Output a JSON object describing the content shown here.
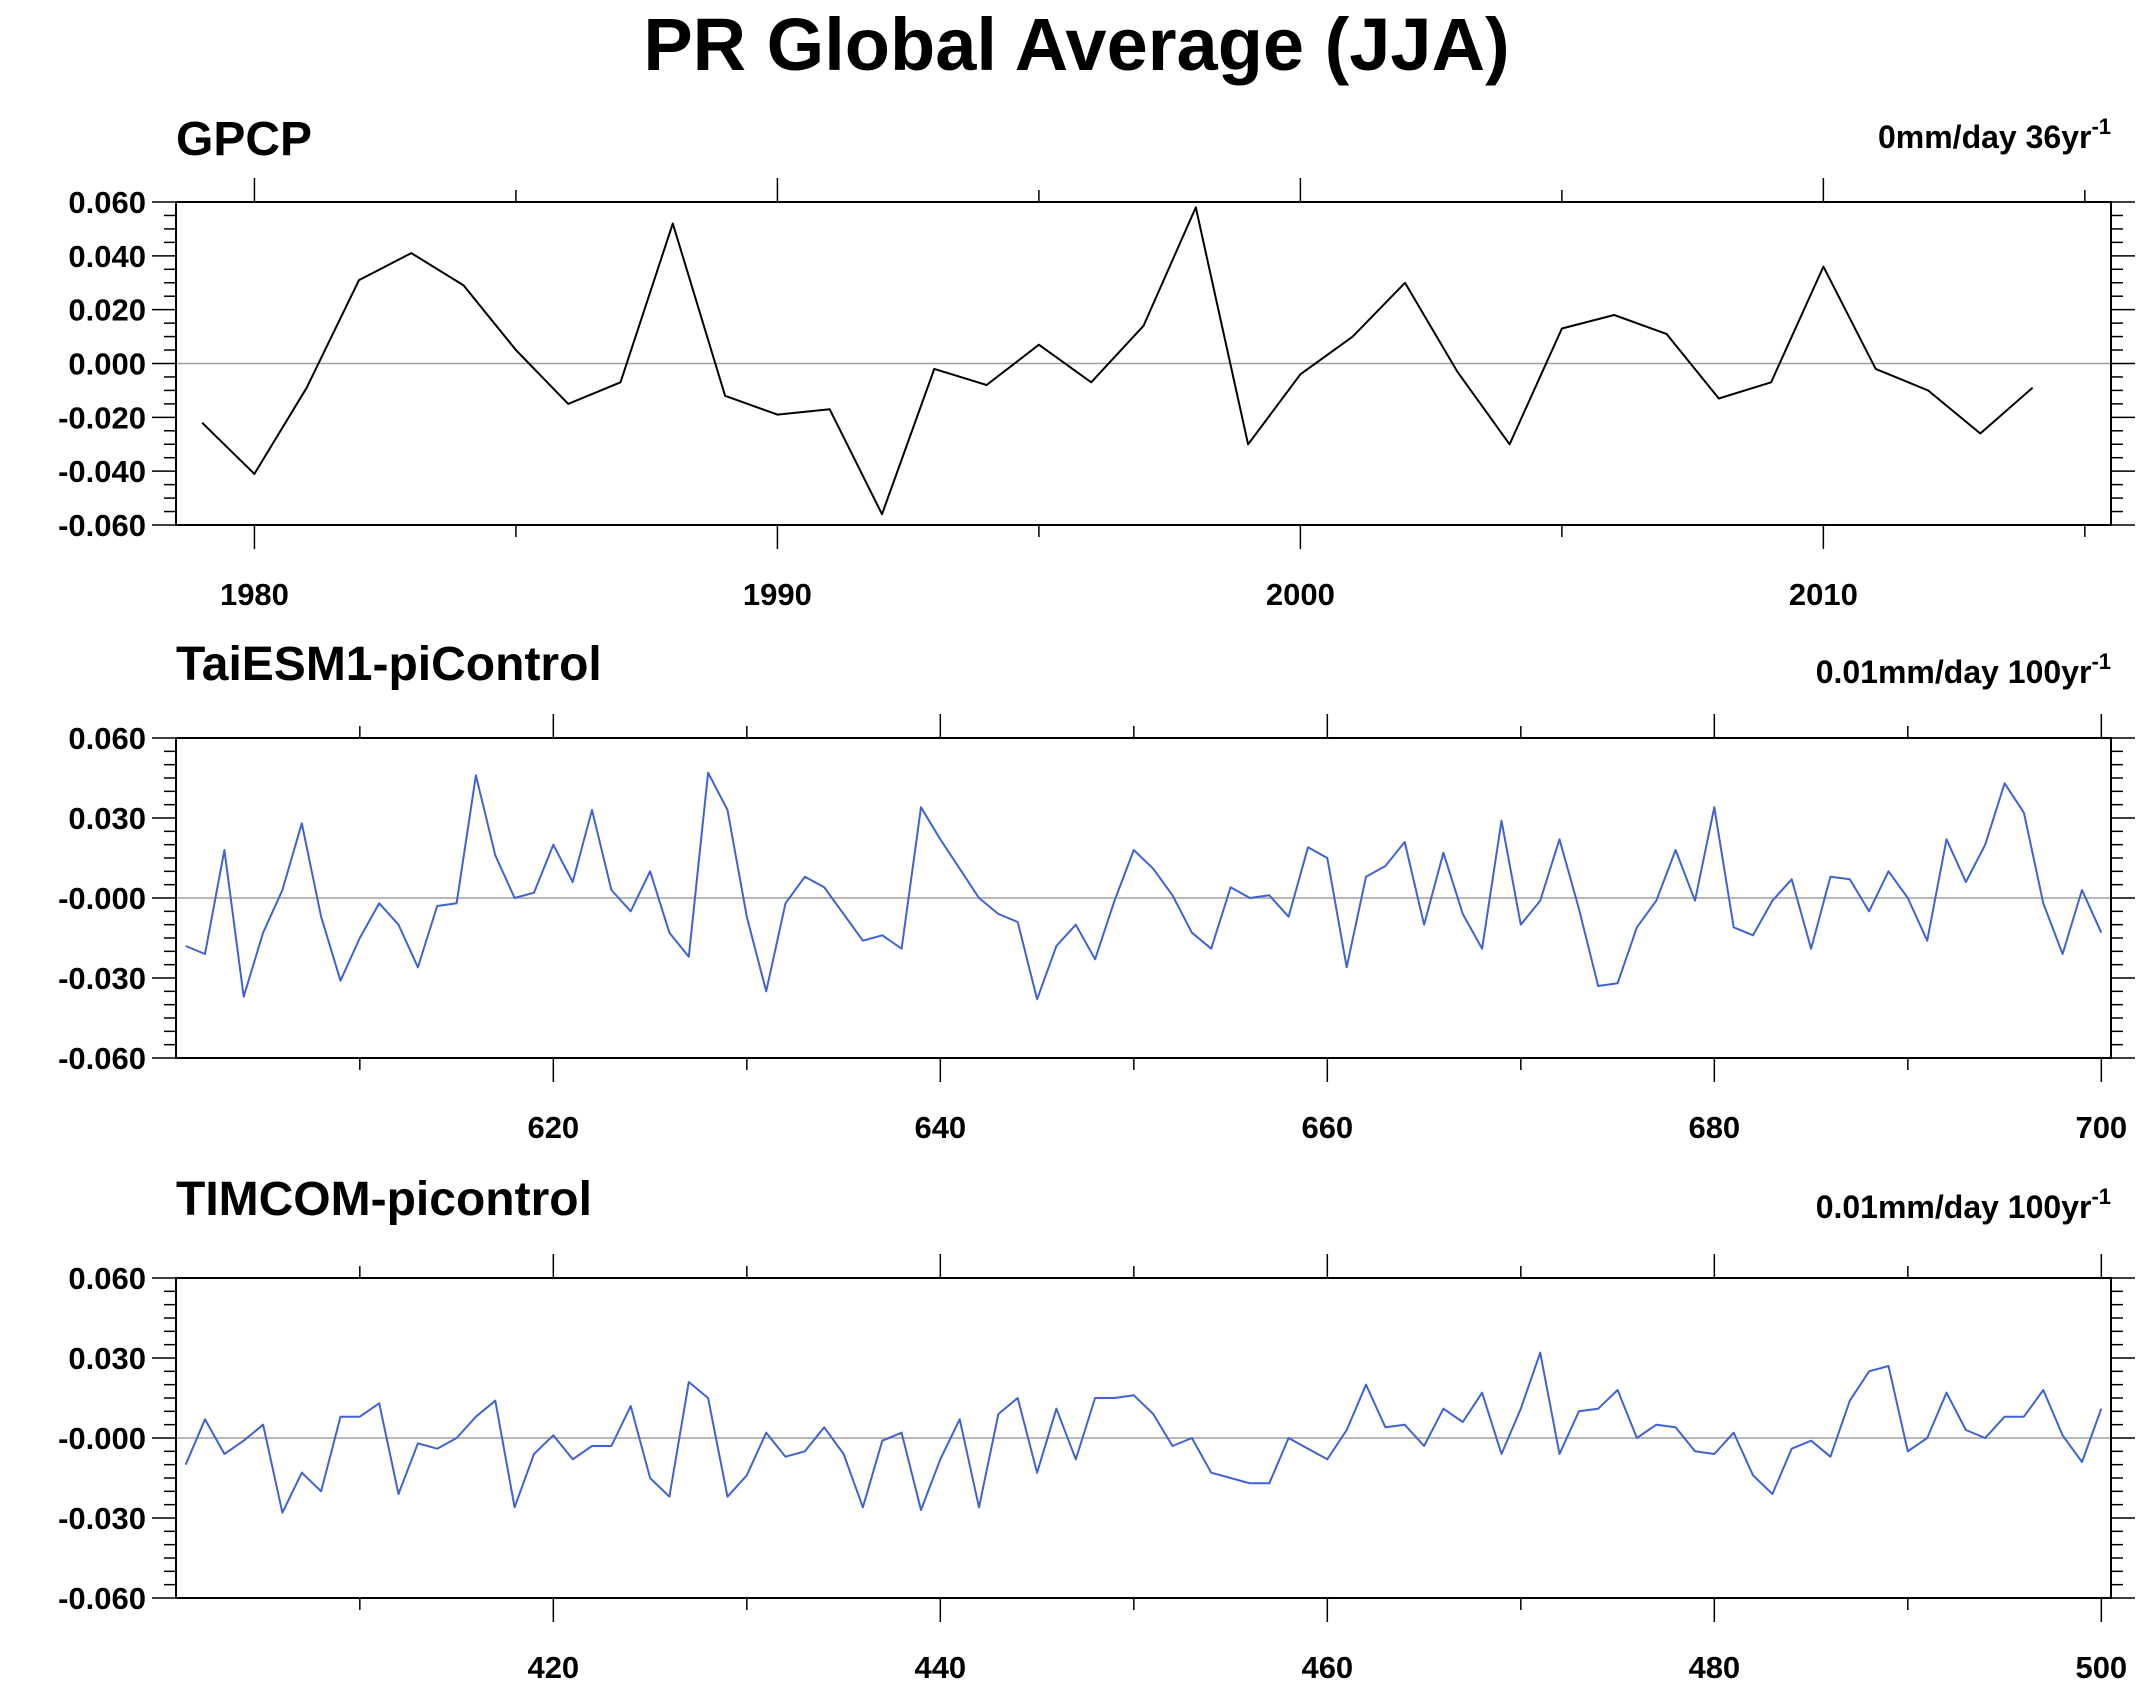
{
  "title": "PR Global Average (JJA)",
  "colors": {
    "obs": "#000000",
    "model": "#3f62d4",
    "zero": "#a0a0a0",
    "frame": "#000000"
  },
  "chart_data": [
    {
      "type": "line",
      "title": "GPCP",
      "trend_label": "0mm/day 36yr",
      "trend_sup": "-1",
      "color": "#000000",
      "xlim": [
        1978.5,
        2015.5
      ],
      "ylim": [
        -0.06,
        0.06
      ],
      "x_ticks": [
        1980,
        1990,
        2000,
        2010
      ],
      "x_tick_labels": [
        "1980",
        "1990",
        "2000",
        "2010"
      ],
      "y_ticks": [
        0.06,
        0.04,
        0.02,
        0.0,
        -0.02,
        -0.04,
        -0.06
      ],
      "y_tick_labels": [
        "0.060",
        "0.040",
        "0.020",
        "0.000",
        "-0.020",
        "-0.040",
        "-0.060"
      ],
      "x_start": 1979,
      "x_step": 1,
      "values": [
        -0.022,
        -0.041,
        -0.009,
        0.031,
        0.041,
        0.029,
        0.005,
        -0.015,
        -0.007,
        0.052,
        -0.012,
        -0.019,
        -0.017,
        -0.056,
        -0.002,
        -0.008,
        0.007,
        -0.007,
        0.014,
        0.058,
        -0.03,
        -0.004,
        0.01,
        0.03,
        -0.003,
        -0.03,
        0.013,
        0.018,
        0.011,
        -0.013,
        -0.007,
        0.036,
        -0.002,
        -0.01,
        -0.026,
        -0.009
      ]
    },
    {
      "type": "line",
      "title": "TaiESM1-piControl",
      "trend_label": "0.01mm/day 100yr",
      "trend_sup": "-1",
      "color": "#3f62d4",
      "xlim": [
        600.5,
        700.5
      ],
      "ylim": [
        -0.06,
        0.06
      ],
      "x_ticks": [
        620,
        640,
        660,
        680,
        700
      ],
      "x_tick_labels": [
        "620",
        "640",
        "660",
        "680",
        "700"
      ],
      "y_ticks": [
        0.06,
        0.03,
        0.0,
        -0.03,
        -0.06
      ],
      "y_tick_labels": [
        "0.060",
        "0.030",
        "-0.000",
        "-0.030",
        "-0.060"
      ],
      "x_start": 601,
      "x_step": 1,
      "values": [
        -0.018,
        -0.021,
        0.018,
        -0.037,
        -0.013,
        0.003,
        0.028,
        -0.007,
        -0.031,
        -0.015,
        -0.002,
        -0.01,
        -0.026,
        -0.003,
        -0.002,
        0.046,
        0.016,
        0.0,
        0.002,
        0.02,
        0.006,
        0.033,
        0.003,
        -0.005,
        0.01,
        -0.013,
        -0.022,
        0.047,
        0.033,
        -0.007,
        -0.035,
        -0.002,
        0.008,
        0.004,
        -0.006,
        -0.016,
        -0.014,
        -0.019,
        0.034,
        0.022,
        0.011,
        0.0,
        -0.006,
        -0.009,
        -0.038,
        -0.018,
        -0.01,
        -0.023,
        -0.001,
        0.018,
        0.011,
        0.001,
        -0.013,
        -0.019,
        0.004,
        0.0,
        0.001,
        -0.007,
        0.019,
        0.015,
        -0.026,
        0.008,
        0.012,
        0.021,
        -0.01,
        0.017,
        -0.006,
        -0.019,
        0.029,
        -0.01,
        -0.001,
        0.022,
        -0.004,
        -0.033,
        -0.032,
        -0.011,
        -0.001,
        0.018,
        -0.001,
        0.034,
        -0.011,
        -0.014,
        -0.001,
        0.007,
        -0.019,
        0.008,
        0.007,
        -0.005,
        0.01,
        0.0,
        -0.016,
        0.022,
        0.006,
        0.02,
        0.043,
        0.032,
        -0.002,
        -0.021,
        0.003,
        -0.013
      ]
    },
    {
      "type": "line",
      "title": "TIMCOM-picontrol",
      "trend_label": "0.01mm/day 100yr",
      "trend_sup": "-1",
      "color": "#3f62d4",
      "xlim": [
        400.5,
        500.5
      ],
      "ylim": [
        -0.06,
        0.06
      ],
      "x_ticks": [
        420,
        440,
        460,
        480,
        500
      ],
      "x_tick_labels": [
        "420",
        "440",
        "460",
        "480",
        "500"
      ],
      "y_ticks": [
        0.06,
        0.03,
        0.0,
        -0.03,
        -0.06
      ],
      "y_tick_labels": [
        "0.060",
        "0.030",
        "-0.000",
        "-0.030",
        "-0.060"
      ],
      "x_start": 401,
      "x_step": 1,
      "values": [
        -0.01,
        0.007,
        -0.006,
        -0.001,
        0.005,
        -0.028,
        -0.013,
        -0.02,
        0.008,
        0.008,
        0.013,
        -0.021,
        -0.002,
        -0.004,
        0.0,
        0.008,
        0.014,
        -0.026,
        -0.006,
        0.001,
        -0.008,
        -0.003,
        -0.003,
        0.012,
        -0.015,
        -0.022,
        0.021,
        0.015,
        -0.022,
        -0.014,
        0.002,
        -0.007,
        -0.005,
        0.004,
        -0.006,
        -0.026,
        -0.001,
        0.002,
        -0.027,
        -0.008,
        0.007,
        -0.026,
        0.009,
        0.015,
        -0.013,
        0.011,
        -0.008,
        0.015,
        0.015,
        0.016,
        0.009,
        -0.003,
        0.0,
        -0.013,
        -0.015,
        -0.017,
        -0.017,
        0.0,
        -0.004,
        -0.008,
        0.003,
        0.02,
        0.004,
        0.005,
        -0.003,
        0.011,
        0.006,
        0.017,
        -0.006,
        0.011,
        0.032,
        -0.006,
        0.01,
        0.011,
        0.018,
        0.0,
        0.005,
        0.004,
        -0.005,
        -0.006,
        0.002,
        -0.014,
        -0.021,
        -0.004,
        -0.001,
        -0.007,
        0.014,
        0.025,
        0.027,
        -0.005,
        0.0,
        0.017,
        0.003,
        0.0,
        0.008,
        0.008,
        0.018,
        0.001,
        -0.009,
        0.011
      ]
    }
  ]
}
